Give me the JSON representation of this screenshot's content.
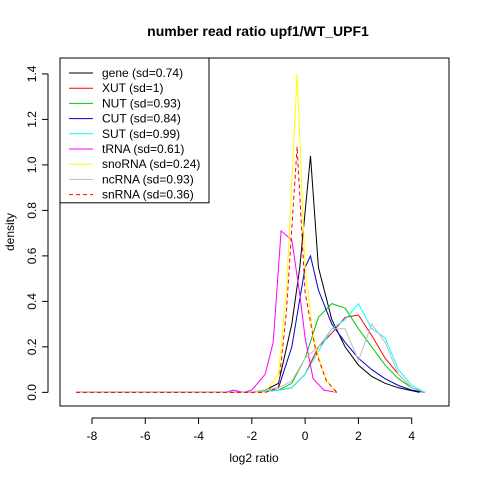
{
  "chart_data": {
    "type": "line",
    "title": "number read ratio upf1/WT_UPF1",
    "xlabel": "log2 ratio",
    "ylabel": "density",
    "xlim": [
      -9.2,
      5.4
    ],
    "ylim": [
      -0.06,
      1.47
    ],
    "xticks": [
      -8,
      -6,
      -4,
      -2,
      0,
      2,
      4
    ],
    "yticks": [
      0.0,
      0.2,
      0.4,
      0.6,
      0.8,
      1.0,
      1.2,
      1.4
    ],
    "xtick_labels": [
      "-8",
      "-6",
      "-4",
      "-2",
      "0",
      "2",
      "4"
    ],
    "ytick_labels": [
      "0.0",
      "0.2",
      "0.4",
      "0.6",
      "0.8",
      "1.0",
      "1.2",
      "1.4"
    ],
    "legend_position": "top-left",
    "series": [
      {
        "name": "gene (sd=0.74)",
        "color": "#000000",
        "dash": "solid",
        "x": [
          -8.6,
          -2,
          -1.5,
          -1,
          -0.5,
          -0.2,
          0.2,
          0.5,
          1,
          1.5,
          2,
          2.5,
          3,
          3.5,
          4.3
        ],
        "y": [
          0,
          0,
          0.01,
          0.04,
          0.3,
          0.55,
          1.04,
          0.55,
          0.32,
          0.2,
          0.12,
          0.07,
          0.04,
          0.02,
          0
        ]
      },
      {
        "name": "XUT (sd=1)",
        "color": "#ff0000",
        "dash": "solid",
        "x": [
          -8.6,
          -2,
          -1,
          -0.5,
          0,
          0.5,
          1,
          1.5,
          2,
          2.5,
          3,
          3.5,
          4,
          4.5
        ],
        "y": [
          0,
          0,
          0.01,
          0.02,
          0.08,
          0.2,
          0.26,
          0.33,
          0.34,
          0.25,
          0.15,
          0.08,
          0.02,
          0
        ]
      },
      {
        "name": "NUT (sd=0.93)",
        "color": "#00cc00",
        "dash": "solid",
        "x": [
          -8.6,
          -2,
          -1,
          -0.5,
          0,
          0.5,
          1,
          1.5,
          2,
          2.5,
          3,
          3.5,
          4,
          4.5
        ],
        "y": [
          0,
          0,
          0.01,
          0.04,
          0.15,
          0.33,
          0.39,
          0.37,
          0.28,
          0.2,
          0.12,
          0.06,
          0.02,
          0
        ]
      },
      {
        "name": "CUT (sd=0.84)",
        "color": "#0000cc",
        "dash": "solid",
        "x": [
          -8.6,
          -2,
          -1,
          -0.5,
          0,
          0.2,
          0.5,
          1,
          1.5,
          2,
          2.5,
          3,
          3.5,
          4,
          4.5
        ],
        "y": [
          0,
          0,
          0.02,
          0.2,
          0.55,
          0.6,
          0.45,
          0.3,
          0.22,
          0.15,
          0.1,
          0.06,
          0.03,
          0.01,
          0
        ]
      },
      {
        "name": "SUT (sd=0.99)",
        "color": "#00ffff",
        "dash": "solid",
        "x": [
          -8.6,
          -2,
          -1,
          -0.5,
          0,
          0.5,
          1,
          1.5,
          2,
          2.5,
          3,
          3.5,
          4,
          4.5
        ],
        "y": [
          0,
          0,
          0.01,
          0.02,
          0.08,
          0.18,
          0.28,
          0.32,
          0.39,
          0.28,
          0.24,
          0.1,
          0.03,
          0
        ]
      },
      {
        "name": "tRNA (sd=0.61)",
        "color": "#ff00ff",
        "dash": "solid",
        "x": [
          -8.6,
          -3,
          -2.7,
          -2.3,
          -2,
          -1.5,
          -1.2,
          -0.9,
          -0.5,
          -0.2,
          0,
          0.3,
          0.7,
          1.2
        ],
        "y": [
          0,
          0,
          0.01,
          0.0,
          0.01,
          0.08,
          0.22,
          0.71,
          0.67,
          0.43,
          0.24,
          0.06,
          0.01,
          0
        ]
      },
      {
        "name": "snoRNA (sd=0.24)",
        "color": "#ffff00",
        "dash": "solid",
        "x": [
          -8.6,
          -1.5,
          -1,
          -0.7,
          -0.3,
          0,
          0.3,
          0.7,
          1.1
        ],
        "y": [
          0,
          0,
          0.08,
          0.45,
          1.4,
          0.55,
          0.25,
          0.08,
          0
        ]
      },
      {
        "name": "ncRNA (sd=0.93)",
        "color": "#bebebe",
        "dash": "solid",
        "x": [
          -8.6,
          -2,
          -1,
          -0.5,
          0,
          0.5,
          1,
          1.5,
          2,
          2.5,
          3,
          3.5,
          4,
          4.5
        ],
        "y": [
          0,
          0,
          0.02,
          0.05,
          0.15,
          0.2,
          0.28,
          0.28,
          0.14,
          0.3,
          0.22,
          0.08,
          0.02,
          0
        ]
      },
      {
        "name": "snRNA (sd=0.36)",
        "color": "#ff0000",
        "dash": "dashed",
        "x": [
          -8.6,
          -1.5,
          -1,
          -0.7,
          -0.3,
          0,
          0.4,
          0.8,
          1.2
        ],
        "y": [
          0,
          0,
          0.02,
          0.36,
          1.08,
          0.44,
          0.18,
          0.05,
          0
        ]
      }
    ]
  }
}
